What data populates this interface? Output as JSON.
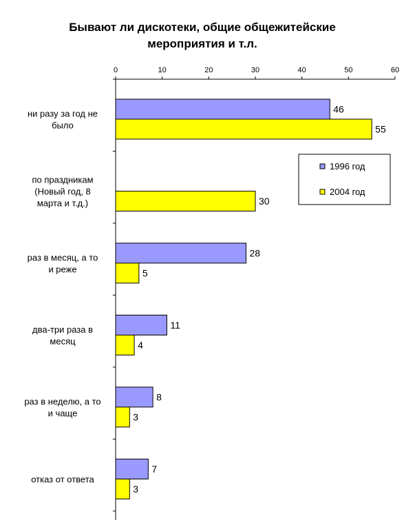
{
  "chart_data": {
    "type": "bar",
    "orientation": "horizontal",
    "title_lines": [
      "Бывают ли дискотеки, общие общежитейские",
      "мероприятия и т.л."
    ],
    "xlim": [
      0,
      60
    ],
    "x_ticks": [
      0,
      10,
      20,
      30,
      40,
      50,
      60
    ],
    "x_axis_position": "top",
    "grid": false,
    "legend_position": "right",
    "categories": [
      [
        "ни разу за год не",
        "было"
      ],
      [
        "по праздникам",
        "(Новый год, 8",
        "марта и т.д.)"
      ],
      [
        "раз в месяц, а то",
        "и реже"
      ],
      [
        "два-три раза в",
        "месяц"
      ],
      [
        "раз в неделю, а то",
        "и чаще"
      ],
      [
        "отказ от ответа"
      ]
    ],
    "series": [
      {
        "name": "1996 год",
        "color": "#9999ff",
        "values": [
          46,
          null,
          28,
          11,
          8,
          7
        ]
      },
      {
        "name": "2004 год",
        "color": "#ffff00",
        "values": [
          55,
          30,
          5,
          4,
          3,
          3
        ]
      }
    ]
  }
}
